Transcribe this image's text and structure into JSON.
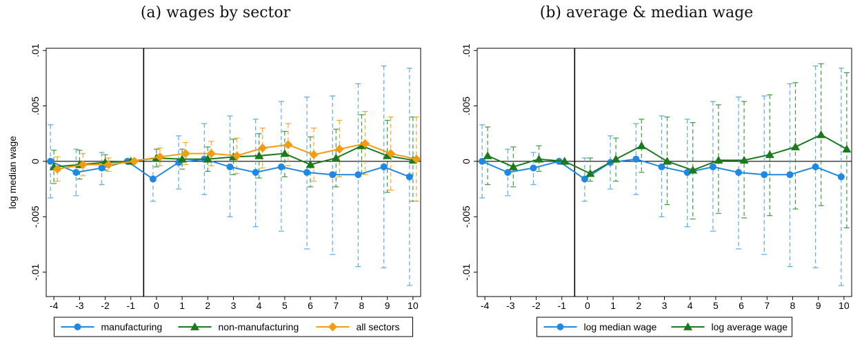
{
  "chart_data": [
    {
      "type": "line",
      "title": "(a) wages by sector",
      "xlabel": "",
      "ylabel": "log median wage",
      "x": [
        -4,
        -3,
        -2,
        -1,
        0,
        1,
        2,
        3,
        4,
        5,
        6,
        7,
        8,
        9,
        10
      ],
      "xlim": [
        -4.3,
        10.3
      ],
      "ylim": [
        -0.0122,
        0.0102
      ],
      "yticks": [
        0.01,
        0.005,
        0,
        -0.005,
        -0.01
      ],
      "ytick_labels": [
        ".01",
        ".005",
        "0",
        "-.005",
        "-.01"
      ],
      "event_line_x": -0.5,
      "grid": false,
      "legend_position": "bottom",
      "series": [
        {
          "name": "manufacturing",
          "marker": "circle",
          "color": "#1e88e5",
          "ci_color": "#5aaae6",
          "values": [
            0.0,
            -0.001,
            -0.0006,
            0.0,
            -0.0016,
            -0.0001,
            0.0002,
            -0.0005,
            -0.001,
            -0.0005,
            -0.001,
            -0.0012,
            -0.0012,
            -0.0005,
            -0.0014
          ],
          "lower": [
            -0.0033,
            -0.0031,
            -0.0021,
            0.0,
            -0.0036,
            -0.0025,
            -0.003,
            -0.005,
            -0.0059,
            -0.0063,
            -0.0079,
            -0.0084,
            -0.0095,
            -0.0096,
            -0.0112
          ],
          "upper": [
            0.0033,
            0.0011,
            0.0008,
            0.0,
            0.0003,
            0.0023,
            0.0034,
            0.0041,
            0.0038,
            0.0054,
            0.0058,
            0.0059,
            0.007,
            0.0086,
            0.0084
          ]
        },
        {
          "name": "non-manufacturing",
          "marker": "triangle",
          "color": "#1b7a1b",
          "ci_color": "#3c9a3c",
          "values": [
            -0.0005,
            -0.0003,
            -0.0001,
            0.0,
            0.0003,
            0.0002,
            0.0002,
            0.0004,
            0.0005,
            0.0007,
            -0.0003,
            0.0003,
            0.0014,
            0.0005,
            0.0001
          ],
          "lower": [
            -0.002,
            -0.0016,
            -0.0008,
            0.0,
            -0.0005,
            -0.0007,
            -0.0009,
            -0.0012,
            -0.0015,
            -0.0014,
            -0.0023,
            -0.0023,
            -0.0011,
            -0.0028,
            -0.0036
          ],
          "upper": [
            0.001,
            0.001,
            0.0006,
            0.0,
            0.0011,
            0.0011,
            0.0013,
            0.002,
            0.0025,
            0.0027,
            0.0022,
            0.0029,
            0.0042,
            0.0037,
            0.004
          ]
        },
        {
          "name": "all sectors",
          "marker": "diamond",
          "color": "#f39c12",
          "ci_color": "#f5a623",
          "values": [
            -0.0007,
            -0.0003,
            -0.0003,
            0.0,
            0.0004,
            0.0007,
            0.0007,
            0.0005,
            0.0012,
            0.0015,
            0.0006,
            0.0011,
            0.0016,
            0.0007,
            0.0002
          ],
          "lower": [
            -0.0018,
            -0.0013,
            -0.0009,
            0.0,
            -0.0004,
            -0.0003,
            -0.0004,
            -0.0011,
            -0.0006,
            -0.0004,
            -0.0018,
            -0.0014,
            -0.0012,
            -0.0026,
            -0.0036
          ],
          "upper": [
            0.0004,
            0.0007,
            0.0003,
            0.0,
            0.0012,
            0.0017,
            0.0018,
            0.0021,
            0.003,
            0.0034,
            0.003,
            0.0037,
            0.0045,
            0.004,
            0.004
          ]
        }
      ]
    },
    {
      "type": "line",
      "title": "(b) average & median wage",
      "xlabel": "",
      "ylabel": "",
      "x": [
        -4,
        -3,
        -2,
        -1,
        0,
        1,
        2,
        3,
        4,
        5,
        6,
        7,
        8,
        9,
        10
      ],
      "xlim": [
        -4.3,
        10.3
      ],
      "ylim": [
        -0.0122,
        0.0102
      ],
      "yticks": [
        0.01,
        0.005,
        0,
        -0.005,
        -0.01
      ],
      "ytick_labels": [
        ".01",
        ".005",
        "0",
        "-.005",
        "-.01"
      ],
      "event_line_x": -0.5,
      "grid": false,
      "legend_position": "bottom",
      "series": [
        {
          "name": "log median wage",
          "marker": "circle",
          "color": "#1e88e5",
          "ci_color": "#5aaae6",
          "values": [
            0.0,
            -0.001,
            -0.0006,
            0.0,
            -0.0016,
            -0.0001,
            0.0002,
            -0.0005,
            -0.001,
            -0.0005,
            -0.001,
            -0.0012,
            -0.0012,
            -0.0005,
            -0.0014
          ],
          "lower": [
            -0.0033,
            -0.0031,
            -0.0021,
            0.0,
            -0.0036,
            -0.0025,
            -0.003,
            -0.005,
            -0.0059,
            -0.0063,
            -0.0079,
            -0.0084,
            -0.0095,
            -0.0096,
            -0.0112
          ],
          "upper": [
            0.0033,
            0.0011,
            0.0008,
            0.0,
            0.0003,
            0.0023,
            0.0034,
            0.0041,
            0.0038,
            0.0054,
            0.0058,
            0.0059,
            0.007,
            0.0086,
            0.0084
          ]
        },
        {
          "name": "log average wage",
          "marker": "triangle",
          "color": "#1b7a1b",
          "ci_color": "#3c9a3c",
          "values": [
            0.0005,
            -0.0005,
            0.0002,
            0.0,
            -0.0011,
            0.0002,
            0.0014,
            0.0,
            -0.0008,
            0.0001,
            0.0001,
            0.0006,
            0.0013,
            0.0024,
            0.0011
          ],
          "lower": [
            -0.0021,
            -0.0023,
            -0.0009,
            0.0,
            -0.0018,
            -0.0018,
            -0.001,
            -0.0039,
            -0.0052,
            -0.0047,
            -0.0051,
            -0.0049,
            -0.0043,
            -0.004,
            -0.006
          ],
          "upper": [
            0.0031,
            0.0013,
            0.0014,
            0.0,
            0.0003,
            0.0021,
            0.0038,
            0.004,
            0.0035,
            0.0051,
            0.0054,
            0.006,
            0.0071,
            0.0088,
            0.008
          ]
        }
      ]
    }
  ]
}
